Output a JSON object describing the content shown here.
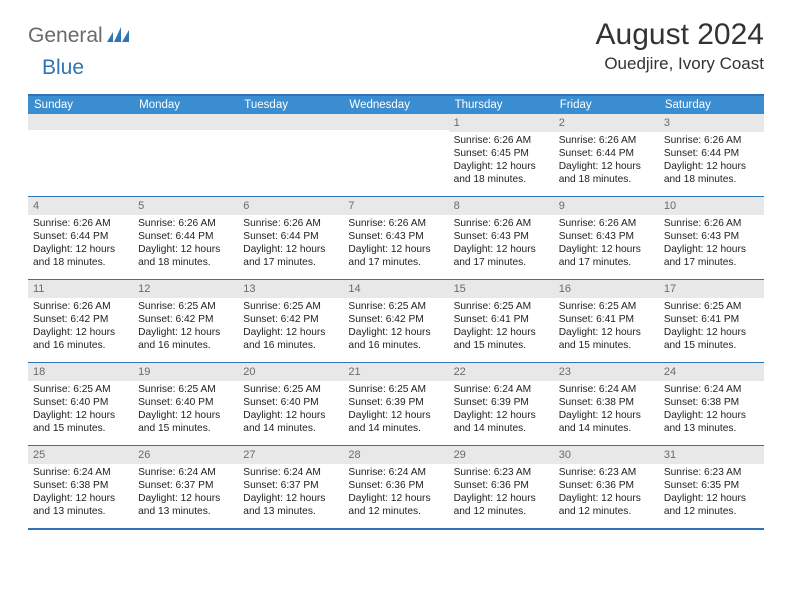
{
  "logo": {
    "text1": "General",
    "text2": "Blue"
  },
  "title": "August 2024",
  "location": "Ouedjire, Ivory Coast",
  "colors": {
    "accent": "#3a8dd0",
    "accentBorder": "#2f75b5",
    "dayBar": "#e8e8e8",
    "dayBarText": "#6a6a6a"
  },
  "dayHeaders": [
    "Sunday",
    "Monday",
    "Tuesday",
    "Wednesday",
    "Thursday",
    "Friday",
    "Saturday"
  ],
  "weeks": [
    [
      {
        "num": "",
        "sunrise": "",
        "sunset": "",
        "daylight": ""
      },
      {
        "num": "",
        "sunrise": "",
        "sunset": "",
        "daylight": ""
      },
      {
        "num": "",
        "sunrise": "",
        "sunset": "",
        "daylight": ""
      },
      {
        "num": "",
        "sunrise": "",
        "sunset": "",
        "daylight": ""
      },
      {
        "num": "1",
        "sunrise": "Sunrise: 6:26 AM",
        "sunset": "Sunset: 6:45 PM",
        "daylight": "Daylight: 12 hours and 18 minutes."
      },
      {
        "num": "2",
        "sunrise": "Sunrise: 6:26 AM",
        "sunset": "Sunset: 6:44 PM",
        "daylight": "Daylight: 12 hours and 18 minutes."
      },
      {
        "num": "3",
        "sunrise": "Sunrise: 6:26 AM",
        "sunset": "Sunset: 6:44 PM",
        "daylight": "Daylight: 12 hours and 18 minutes."
      }
    ],
    [
      {
        "num": "4",
        "sunrise": "Sunrise: 6:26 AM",
        "sunset": "Sunset: 6:44 PM",
        "daylight": "Daylight: 12 hours and 18 minutes."
      },
      {
        "num": "5",
        "sunrise": "Sunrise: 6:26 AM",
        "sunset": "Sunset: 6:44 PM",
        "daylight": "Daylight: 12 hours and 18 minutes."
      },
      {
        "num": "6",
        "sunrise": "Sunrise: 6:26 AM",
        "sunset": "Sunset: 6:44 PM",
        "daylight": "Daylight: 12 hours and 17 minutes."
      },
      {
        "num": "7",
        "sunrise": "Sunrise: 6:26 AM",
        "sunset": "Sunset: 6:43 PM",
        "daylight": "Daylight: 12 hours and 17 minutes."
      },
      {
        "num": "8",
        "sunrise": "Sunrise: 6:26 AM",
        "sunset": "Sunset: 6:43 PM",
        "daylight": "Daylight: 12 hours and 17 minutes."
      },
      {
        "num": "9",
        "sunrise": "Sunrise: 6:26 AM",
        "sunset": "Sunset: 6:43 PM",
        "daylight": "Daylight: 12 hours and 17 minutes."
      },
      {
        "num": "10",
        "sunrise": "Sunrise: 6:26 AM",
        "sunset": "Sunset: 6:43 PM",
        "daylight": "Daylight: 12 hours and 17 minutes."
      }
    ],
    [
      {
        "num": "11",
        "sunrise": "Sunrise: 6:26 AM",
        "sunset": "Sunset: 6:42 PM",
        "daylight": "Daylight: 12 hours and 16 minutes."
      },
      {
        "num": "12",
        "sunrise": "Sunrise: 6:25 AM",
        "sunset": "Sunset: 6:42 PM",
        "daylight": "Daylight: 12 hours and 16 minutes."
      },
      {
        "num": "13",
        "sunrise": "Sunrise: 6:25 AM",
        "sunset": "Sunset: 6:42 PM",
        "daylight": "Daylight: 12 hours and 16 minutes."
      },
      {
        "num": "14",
        "sunrise": "Sunrise: 6:25 AM",
        "sunset": "Sunset: 6:42 PM",
        "daylight": "Daylight: 12 hours and 16 minutes."
      },
      {
        "num": "15",
        "sunrise": "Sunrise: 6:25 AM",
        "sunset": "Sunset: 6:41 PM",
        "daylight": "Daylight: 12 hours and 15 minutes."
      },
      {
        "num": "16",
        "sunrise": "Sunrise: 6:25 AM",
        "sunset": "Sunset: 6:41 PM",
        "daylight": "Daylight: 12 hours and 15 minutes."
      },
      {
        "num": "17",
        "sunrise": "Sunrise: 6:25 AM",
        "sunset": "Sunset: 6:41 PM",
        "daylight": "Daylight: 12 hours and 15 minutes."
      }
    ],
    [
      {
        "num": "18",
        "sunrise": "Sunrise: 6:25 AM",
        "sunset": "Sunset: 6:40 PM",
        "daylight": "Daylight: 12 hours and 15 minutes."
      },
      {
        "num": "19",
        "sunrise": "Sunrise: 6:25 AM",
        "sunset": "Sunset: 6:40 PM",
        "daylight": "Daylight: 12 hours and 15 minutes."
      },
      {
        "num": "20",
        "sunrise": "Sunrise: 6:25 AM",
        "sunset": "Sunset: 6:40 PM",
        "daylight": "Daylight: 12 hours and 14 minutes."
      },
      {
        "num": "21",
        "sunrise": "Sunrise: 6:25 AM",
        "sunset": "Sunset: 6:39 PM",
        "daylight": "Daylight: 12 hours and 14 minutes."
      },
      {
        "num": "22",
        "sunrise": "Sunrise: 6:24 AM",
        "sunset": "Sunset: 6:39 PM",
        "daylight": "Daylight: 12 hours and 14 minutes."
      },
      {
        "num": "23",
        "sunrise": "Sunrise: 6:24 AM",
        "sunset": "Sunset: 6:38 PM",
        "daylight": "Daylight: 12 hours and 14 minutes."
      },
      {
        "num": "24",
        "sunrise": "Sunrise: 6:24 AM",
        "sunset": "Sunset: 6:38 PM",
        "daylight": "Daylight: 12 hours and 13 minutes."
      }
    ],
    [
      {
        "num": "25",
        "sunrise": "Sunrise: 6:24 AM",
        "sunset": "Sunset: 6:38 PM",
        "daylight": "Daylight: 12 hours and 13 minutes."
      },
      {
        "num": "26",
        "sunrise": "Sunrise: 6:24 AM",
        "sunset": "Sunset: 6:37 PM",
        "daylight": "Daylight: 12 hours and 13 minutes."
      },
      {
        "num": "27",
        "sunrise": "Sunrise: 6:24 AM",
        "sunset": "Sunset: 6:37 PM",
        "daylight": "Daylight: 12 hours and 13 minutes."
      },
      {
        "num": "28",
        "sunrise": "Sunrise: 6:24 AM",
        "sunset": "Sunset: 6:36 PM",
        "daylight": "Daylight: 12 hours and 12 minutes."
      },
      {
        "num": "29",
        "sunrise": "Sunrise: 6:23 AM",
        "sunset": "Sunset: 6:36 PM",
        "daylight": "Daylight: 12 hours and 12 minutes."
      },
      {
        "num": "30",
        "sunrise": "Sunrise: 6:23 AM",
        "sunset": "Sunset: 6:36 PM",
        "daylight": "Daylight: 12 hours and 12 minutes."
      },
      {
        "num": "31",
        "sunrise": "Sunrise: 6:23 AM",
        "sunset": "Sunset: 6:35 PM",
        "daylight": "Daylight: 12 hours and 12 minutes."
      }
    ]
  ]
}
